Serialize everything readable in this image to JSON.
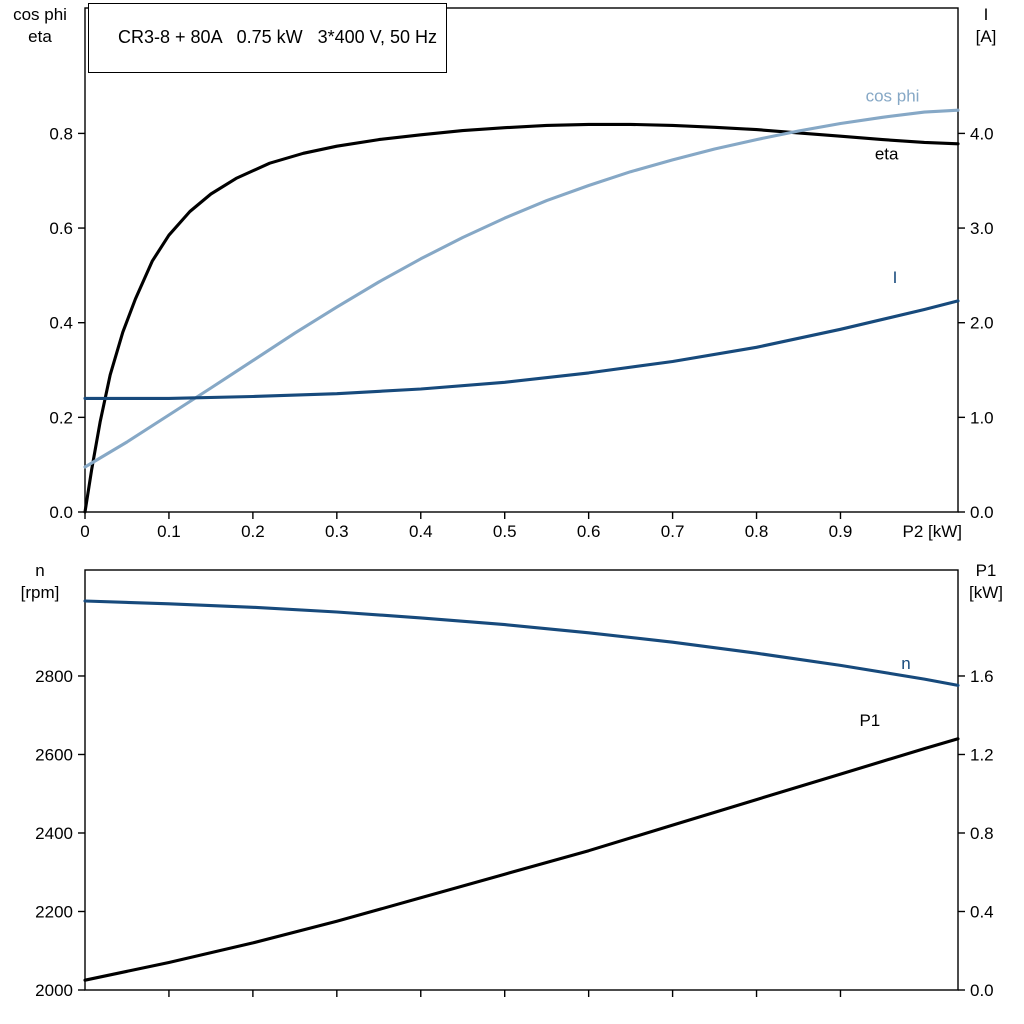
{
  "background": "#ffffff",
  "axis_color": "#000000",
  "chart_data": [
    {
      "type": "line",
      "title": "CR3-8 + 80A   0.75 kW   3*400 V, 50 Hz",
      "x_range": [
        0,
        1.04
      ],
      "x_end_label": "P2 [kW]",
      "x_ticks": [
        {
          "v": 0,
          "label": "0"
        },
        {
          "v": 0.1,
          "label": "0.1"
        },
        {
          "v": 0.2,
          "label": "0.2"
        },
        {
          "v": 0.3,
          "label": "0.3"
        },
        {
          "v": 0.4,
          "label": "0.4"
        },
        {
          "v": 0.5,
          "label": "0.5"
        },
        {
          "v": 0.6,
          "label": "0.6"
        },
        {
          "v": 0.7,
          "label": "0.7"
        },
        {
          "v": 0.8,
          "label": "0.8"
        },
        {
          "v": 0.9,
          "label": "0.9"
        }
      ],
      "left_axis": {
        "title_lines": [
          "cos phi",
          "eta"
        ],
        "range": [
          0,
          1.065
        ],
        "ticks": [
          {
            "v": 0.0,
            "label": "0.0"
          },
          {
            "v": 0.2,
            "label": "0.2"
          },
          {
            "v": 0.4,
            "label": "0.4"
          },
          {
            "v": 0.6,
            "label": "0.6"
          },
          {
            "v": 0.8,
            "label": "0.8"
          }
        ]
      },
      "right_axis": {
        "title_lines": [
          "I",
          "[A]"
        ],
        "range": [
          0,
          5.325
        ],
        "ticks": [
          {
            "v": 0.0,
            "label": "0.0"
          },
          {
            "v": 1.0,
            "label": "1.0"
          },
          {
            "v": 2.0,
            "label": "2.0"
          },
          {
            "v": 3.0,
            "label": "3.0"
          },
          {
            "v": 4.0,
            "label": "4.0"
          }
        ]
      },
      "series": [
        {
          "name": "eta",
          "label": "eta",
          "axis": "left",
          "color": "#000000",
          "label_xy": [
            0.955,
            0.745
          ],
          "x": [
            0,
            0.008,
            0.018,
            0.03,
            0.045,
            0.06,
            0.08,
            0.1,
            0.125,
            0.15,
            0.18,
            0.22,
            0.26,
            0.3,
            0.35,
            0.4,
            0.45,
            0.5,
            0.55,
            0.6,
            0.65,
            0.7,
            0.75,
            0.8,
            0.85,
            0.9,
            0.95,
            1.0,
            1.04
          ],
          "y": [
            0,
            0.09,
            0.19,
            0.29,
            0.38,
            0.45,
            0.53,
            0.585,
            0.635,
            0.672,
            0.705,
            0.737,
            0.758,
            0.773,
            0.787,
            0.797,
            0.806,
            0.812,
            0.817,
            0.819,
            0.819,
            0.817,
            0.813,
            0.808,
            0.801,
            0.794,
            0.787,
            0.781,
            0.778
          ]
        },
        {
          "name": "cos phi",
          "label": "cos phi",
          "axis": "left",
          "color": "#86a8c6",
          "label_xy": [
            0.962,
            0.867
          ],
          "x": [
            0,
            0.05,
            0.1,
            0.15,
            0.2,
            0.25,
            0.3,
            0.35,
            0.4,
            0.45,
            0.5,
            0.55,
            0.6,
            0.65,
            0.7,
            0.75,
            0.8,
            0.85,
            0.9,
            0.95,
            1.0,
            1.04
          ],
          "y": [
            0.095,
            0.148,
            0.205,
            0.262,
            0.32,
            0.378,
            0.433,
            0.486,
            0.535,
            0.58,
            0.621,
            0.658,
            0.69,
            0.719,
            0.744,
            0.767,
            0.787,
            0.805,
            0.821,
            0.834,
            0.845,
            0.849
          ]
        },
        {
          "name": "I",
          "label": "I",
          "axis": "right",
          "color": "#174a7c",
          "label_xy": [
            0.965,
            2.42
          ],
          "x": [
            0,
            0.1,
            0.2,
            0.3,
            0.4,
            0.5,
            0.6,
            0.7,
            0.8,
            0.9,
            1.0,
            1.04
          ],
          "y": [
            1.2,
            1.2,
            1.22,
            1.25,
            1.3,
            1.37,
            1.47,
            1.59,
            1.74,
            1.93,
            2.14,
            2.23
          ]
        }
      ]
    },
    {
      "type": "line",
      "title": "",
      "x_range": [
        0,
        1.04
      ],
      "x_end_label": "",
      "x_ticks": [
        {
          "v": 0.1,
          "label": ""
        },
        {
          "v": 0.2,
          "label": ""
        },
        {
          "v": 0.3,
          "label": ""
        },
        {
          "v": 0.4,
          "label": ""
        },
        {
          "v": 0.5,
          "label": ""
        },
        {
          "v": 0.6,
          "label": ""
        },
        {
          "v": 0.7,
          "label": ""
        },
        {
          "v": 0.8,
          "label": ""
        },
        {
          "v": 0.9,
          "label": ""
        }
      ],
      "left_axis": {
        "title_lines": [
          "n",
          "[rpm]"
        ],
        "range": [
          2000,
          3070
        ],
        "ticks": [
          {
            "v": 2000,
            "label": "2000"
          },
          {
            "v": 2200,
            "label": "2200"
          },
          {
            "v": 2400,
            "label": "2400"
          },
          {
            "v": 2600,
            "label": "2600"
          },
          {
            "v": 2800,
            "label": "2800"
          }
        ]
      },
      "right_axis": {
        "title_lines": [
          "P1",
          "[kW]"
        ],
        "range": [
          0,
          2.14
        ],
        "ticks": [
          {
            "v": 0.0,
            "label": "0.0"
          },
          {
            "v": 0.4,
            "label": "0.4"
          },
          {
            "v": 0.8,
            "label": "0.8"
          },
          {
            "v": 1.2,
            "label": "1.2"
          },
          {
            "v": 1.6,
            "label": "1.6"
          }
        ]
      },
      "series": [
        {
          "name": "n",
          "label": "n",
          "axis": "left",
          "color": "#174a7c",
          "label_xy": [
            0.978,
            2818
          ],
          "x": [
            0,
            0.1,
            0.2,
            0.3,
            0.4,
            0.5,
            0.6,
            0.7,
            0.8,
            0.9,
            1.0,
            1.04
          ],
          "y": [
            2991,
            2984,
            2975,
            2963,
            2948,
            2931,
            2910,
            2886,
            2858,
            2827,
            2792,
            2776
          ]
        },
        {
          "name": "P1",
          "label": "P1",
          "axis": "right",
          "color": "#000000",
          "label_xy": [
            0.935,
            1.345
          ],
          "x": [
            0,
            0.1,
            0.2,
            0.3,
            0.4,
            0.5,
            0.6,
            0.7,
            0.8,
            0.9,
            1.0,
            1.04
          ],
          "y": [
            0.05,
            0.14,
            0.24,
            0.35,
            0.47,
            0.59,
            0.71,
            0.84,
            0.97,
            1.1,
            1.23,
            1.28
          ]
        }
      ]
    }
  ]
}
